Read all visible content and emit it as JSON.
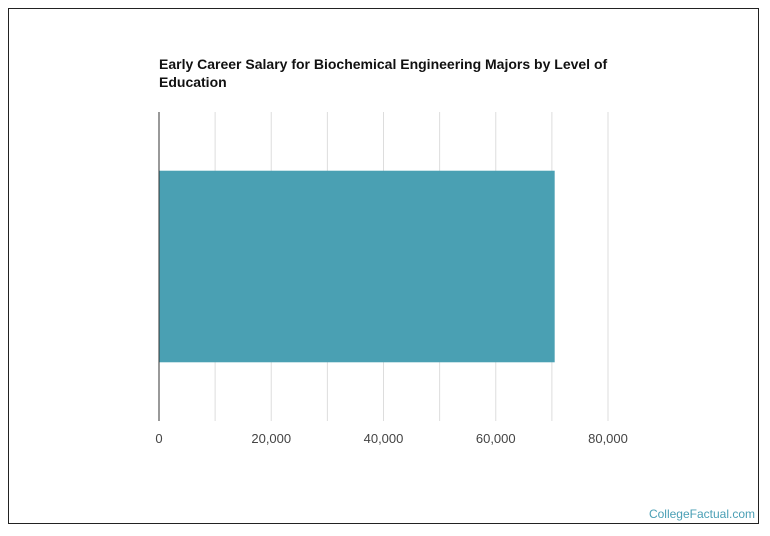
{
  "chart_data": {
    "type": "bar",
    "orientation": "horizontal",
    "title": "Early Career Salary for Biochemical Engineering Majors by Level of Education",
    "categories": [
      ""
    ],
    "values": [
      70500
    ],
    "xlim": [
      0,
      80000
    ],
    "xticks": [
      "0",
      "20,000",
      "40,000",
      "60,000",
      "80,000"
    ],
    "xtick_values": [
      0,
      20000,
      40000,
      60000,
      80000
    ],
    "minor_grid_values": [
      10000,
      30000,
      50000,
      70000
    ],
    "grid": true,
    "bar_color": "#4aa0b3",
    "grid_color": "#dddddd"
  },
  "branding": {
    "text": "CollegeFactual.com",
    "color": "#4a9fb5"
  }
}
